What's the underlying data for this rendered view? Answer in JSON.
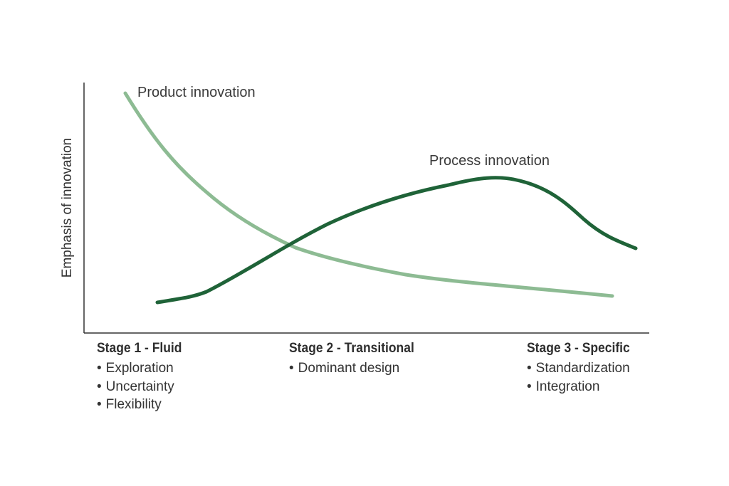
{
  "y_axis_label": "Emphasis of innovation",
  "curves": {
    "product": {
      "label": "Product innovation",
      "color": "#8dbb93"
    },
    "process": {
      "label": "Process innovation",
      "color": "#1f6338"
    }
  },
  "stages": [
    {
      "title": "Stage 1 - Fluid",
      "items": [
        "Exploration",
        "Uncertainty",
        "Flexibility"
      ]
    },
    {
      "title": "Stage 2 - Transitional",
      "items": [
        "Dominant design"
      ]
    },
    {
      "title": "Stage 3 - Specific",
      "items": [
        "Standardization",
        "Integration"
      ]
    }
  ],
  "colors": {
    "axis": "#333333",
    "text": "#333333"
  }
}
